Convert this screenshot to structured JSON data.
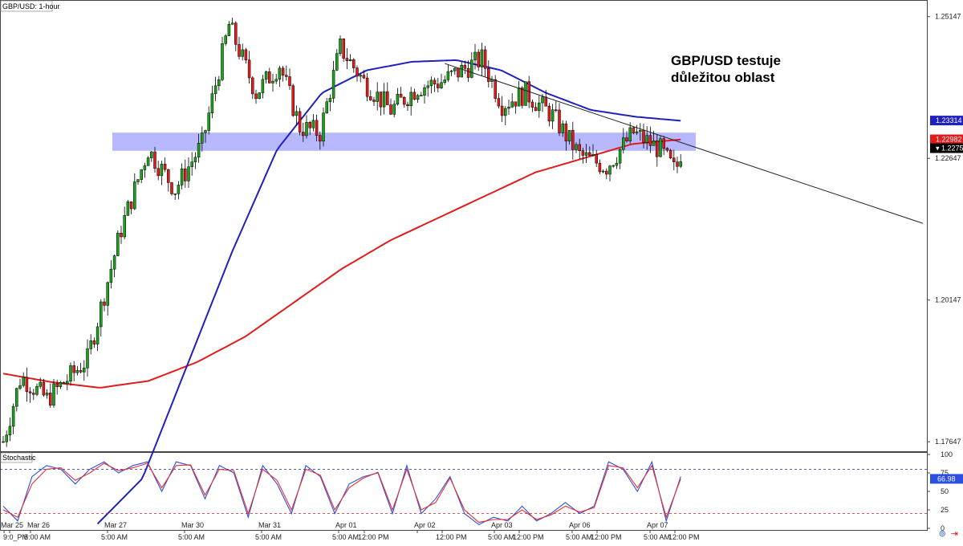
{
  "chart_title": "GBP/USD: 1-hour",
  "annotation": {
    "line1": "GBP/USD testuje",
    "line2": "důležitou oblast"
  },
  "colors": {
    "bull": "#1aa31a",
    "bear": "#e51b1b",
    "ma_fast": "#2020c0",
    "ma_slow": "#e31b1b",
    "zone": "#8888ff",
    "stoch_k": "#2b4fe0",
    "stoch_d": "#e83030"
  },
  "icons": {
    "left": "chart-link-icon",
    "right": "scroll-end-icon"
  },
  "chart_data": [
    {
      "type": "candlestick",
      "title": "GBP/USD: 1-hour",
      "ylim": [
        1.1748,
        1.2544
      ],
      "yticks": [
        "1.25147",
        "1.22647",
        "1.20147",
        "1.17647"
      ],
      "price_labels": [
        {
          "label": "1.23314",
          "value": 1.23314,
          "color": "#2020c0"
        },
        {
          "label": "1.22982",
          "value": 1.22982,
          "color": "#e31b1b"
        },
        {
          "label": "1.22755",
          "value": 1.22755,
          "color": "#000000",
          "marker": "▾"
        }
      ],
      "resistance_zone": [
        1.2278,
        1.231
      ],
      "trendline": {
        "start": [
          "Apr 02",
          1.2432
        ],
        "end": [
          "Apr 09",
          1.215
        ]
      },
      "indicators": [
        "moving-average (blue)",
        "moving-average (red)"
      ],
      "x_ticks": [
        "9:0_PM",
        "Mar 25",
        "Mar 26",
        "5:00 AM",
        "Mar 27",
        "5:00 AM",
        "Mar 30",
        "5:00 AM",
        "Mar 31",
        "5:00 AM",
        "Apr 01",
        "5:00 AM",
        "12:00 PM",
        "Apr 02",
        "12:00 PM",
        "Apr 03",
        "5:00 AM",
        "12:00 PM",
        "Apr 06",
        "5:00 AM",
        "12:00 PM",
        "Apr 07",
        "5:00 AM",
        "12:00 PM"
      ],
      "keypoints": [
        [
          "Mar 25",
          1.1765
        ],
        [
          "Mar 25",
          1.188
        ],
        [
          "Mar 26",
          1.184
        ],
        [
          "Mar 26",
          1.191
        ],
        [
          "Mar 27",
          1.214
        ],
        [
          "Mar 27",
          1.228
        ],
        [
          "Mar 27",
          1.221
        ],
        [
          "Mar 30",
          1.229
        ],
        [
          "Mar 30",
          1.25
        ],
        [
          "Mar 30",
          1.238
        ],
        [
          "Mar 31",
          1.243
        ],
        [
          "Mar 31",
          1.232
        ],
        [
          "Mar 31",
          1.231
        ],
        [
          "Mar 31",
          1.246
        ],
        [
          "Apr 01",
          1.24
        ],
        [
          "Apr 01",
          1.235
        ],
        [
          "Apr 01",
          1.239
        ],
        [
          "Apr 02",
          1.24
        ],
        [
          "Apr 02",
          1.242
        ],
        [
          "Apr 02",
          1.244
        ],
        [
          "Apr 02",
          1.236
        ],
        [
          "Apr 03",
          1.238
        ],
        [
          "Apr 03",
          1.234
        ],
        [
          "Apr 03",
          1.227
        ],
        [
          "Apr 06",
          1.225
        ],
        [
          "Apr 06",
          1.231
        ],
        [
          "Apr 06",
          1.228
        ],
        [
          "Apr 07",
          1.224
        ],
        [
          "Apr 07",
          1.2275
        ]
      ]
    },
    {
      "type": "line",
      "title": "Stochastic",
      "ylim": [
        0,
        100
      ],
      "yticks": [
        "100",
        "75",
        "50",
        "25",
        "0"
      ],
      "levels": [
        80,
        20
      ],
      "value_label": "66.98",
      "series": [
        {
          "values": [
            30,
            10,
            70,
            85,
            80,
            60,
            80,
            90,
            75,
            85,
            90,
            50,
            90,
            85,
            40,
            85,
            75,
            15,
            85,
            60,
            20,
            85,
            70,
            20,
            60,
            70,
            75,
            20,
            85,
            20,
            40,
            70,
            20,
            5,
            15,
            10,
            30,
            10,
            20,
            35,
            20,
            30,
            90,
            80,
            50,
            90,
            10,
            70
          ]
        },
        {
          "values": [
            25,
            15,
            60,
            80,
            82,
            65,
            75,
            88,
            78,
            82,
            88,
            55,
            85,
            86,
            45,
            80,
            78,
            20,
            80,
            65,
            25,
            80,
            72,
            25,
            55,
            68,
            76,
            25,
            80,
            25,
            35,
            68,
            25,
            8,
            12,
            12,
            25,
            12,
            18,
            30,
            22,
            28,
            85,
            82,
            55,
            85,
            15,
            67
          ]
        }
      ]
    }
  ]
}
